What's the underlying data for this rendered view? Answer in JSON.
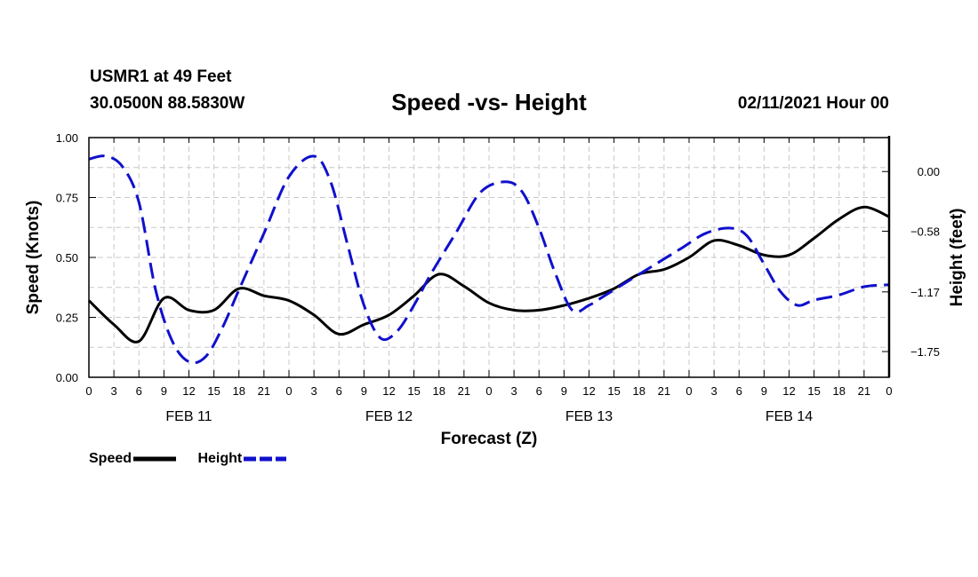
{
  "header": {
    "station": "USMR1 at 49 Feet",
    "coords": "30.0500N 88.5830W",
    "title": "Speed -vs- Height",
    "date": "02/11/2021 Hour 00"
  },
  "legend": {
    "speed_label": "Speed",
    "height_label": "Height"
  },
  "colors": {
    "speed": "#000000",
    "height": "#1010cc",
    "grid": "#c8c8c8"
  },
  "chart_data": {
    "type": "line",
    "title": "Speed -vs- Height",
    "xlabel": "Forecast (Z)",
    "ylabel": "Speed (Knots)",
    "y2label": "Height (feet)",
    "xlim": [
      0,
      96
    ],
    "ylim": [
      0,
      1.0
    ],
    "y2lim": [
      -2.0,
      0.33
    ],
    "yticks": [
      "0.00",
      "0.25",
      "0.50",
      "0.75",
      "1.00"
    ],
    "y2ticks": [
      {
        "value": 0.0,
        "label": "0.00"
      },
      {
        "value": -0.58,
        "label": "-0.58"
      },
      {
        "value": -1.17,
        "label": "-1.17"
      },
      {
        "value": -1.75,
        "label": "-1.75"
      }
    ],
    "xtick_labels": [
      "0",
      "3",
      "6",
      "9",
      "12",
      "15",
      "18",
      "21",
      "0",
      "3",
      "6",
      "9",
      "12",
      "15",
      "18",
      "21",
      "0",
      "3",
      "6",
      "9",
      "12",
      "15",
      "18",
      "21",
      "0",
      "3",
      "6",
      "9",
      "12",
      "15",
      "18",
      "21",
      "0"
    ],
    "day_labels": [
      {
        "hour": 12,
        "label": "FEB 11"
      },
      {
        "hour": 36,
        "label": "FEB 12"
      },
      {
        "hour": 60,
        "label": "FEB 13"
      },
      {
        "hour": 84,
        "label": "FEB 14"
      }
    ],
    "series": [
      {
        "name": "Speed",
        "axis": "left",
        "style": "solid",
        "x": [
          0,
          3,
          6,
          9,
          12,
          15,
          18,
          21,
          24,
          27,
          30,
          33,
          36,
          39,
          42,
          45,
          48,
          51,
          54,
          57,
          60,
          63,
          66,
          69,
          72,
          75,
          78,
          81,
          84,
          87,
          90,
          93,
          96
        ],
        "values": [
          0.32,
          0.22,
          0.15,
          0.33,
          0.28,
          0.28,
          0.37,
          0.34,
          0.32,
          0.26,
          0.18,
          0.22,
          0.26,
          0.34,
          0.43,
          0.38,
          0.31,
          0.28,
          0.28,
          0.3,
          0.33,
          0.37,
          0.43,
          0.45,
          0.5,
          0.57,
          0.55,
          0.51,
          0.51,
          0.58,
          0.66,
          0.71,
          0.67
        ]
      },
      {
        "name": "Height",
        "axis": "right",
        "style": "dashed",
        "x": [
          0,
          2,
          4,
          6,
          8,
          10,
          12,
          14,
          16,
          18,
          21,
          24,
          27,
          29,
          31,
          33,
          35,
          37,
          39,
          41,
          44,
          47,
          50,
          52,
          54,
          56,
          58,
          60,
          62,
          65,
          68,
          71,
          74,
          77,
          79,
          81,
          83,
          85,
          87,
          90,
          93,
          96
        ],
        "values": [
          0.12,
          0.15,
          0.05,
          -0.3,
          -1.15,
          -1.65,
          -1.85,
          -1.8,
          -1.52,
          -1.15,
          -0.6,
          -0.05,
          0.15,
          -0.1,
          -0.7,
          -1.3,
          -1.62,
          -1.55,
          -1.3,
          -1.0,
          -0.6,
          -0.2,
          -0.1,
          -0.2,
          -0.55,
          -1.0,
          -1.35,
          -1.3,
          -1.2,
          -1.05,
          -0.9,
          -0.75,
          -0.6,
          -0.55,
          -0.63,
          -0.9,
          -1.17,
          -1.3,
          -1.25,
          -1.2,
          -1.12,
          -1.1
        ]
      }
    ]
  }
}
